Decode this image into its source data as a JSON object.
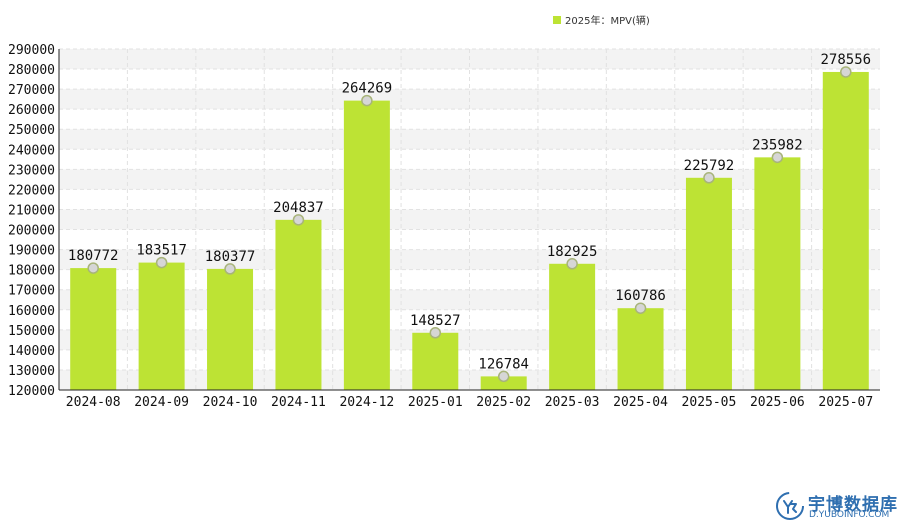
{
  "chart_data": {
    "type": "bar",
    "categories": [
      "2024-08",
      "2024-09",
      "2024-10",
      "2024-11",
      "2024-12",
      "2025-01",
      "2025-02",
      "2025-03",
      "2025-04",
      "2025-05",
      "2025-06",
      "2025-07"
    ],
    "series": [
      {
        "name": "2025年：MPV(辆)",
        "color": "#bde334",
        "values": [
          180772,
          183517,
          180377,
          204837,
          264269,
          148527,
          126784,
          182925,
          160786,
          225792,
          235982,
          278556
        ]
      }
    ],
    "ylim": [
      120000,
      290000
    ],
    "ytick_step": 10000,
    "yticks": [
      "120000",
      "130000",
      "140000",
      "150000",
      "160000",
      "170000",
      "180000",
      "190000",
      "200000",
      "210000",
      "220000",
      "230000",
      "240000",
      "250000",
      "260000",
      "270000",
      "280000",
      "290000"
    ],
    "grid": true,
    "legend_position": "top-right",
    "data_labels": true
  },
  "watermark": {
    "name": "宇博数据库",
    "url": "D.YUBOINFO.COM"
  }
}
